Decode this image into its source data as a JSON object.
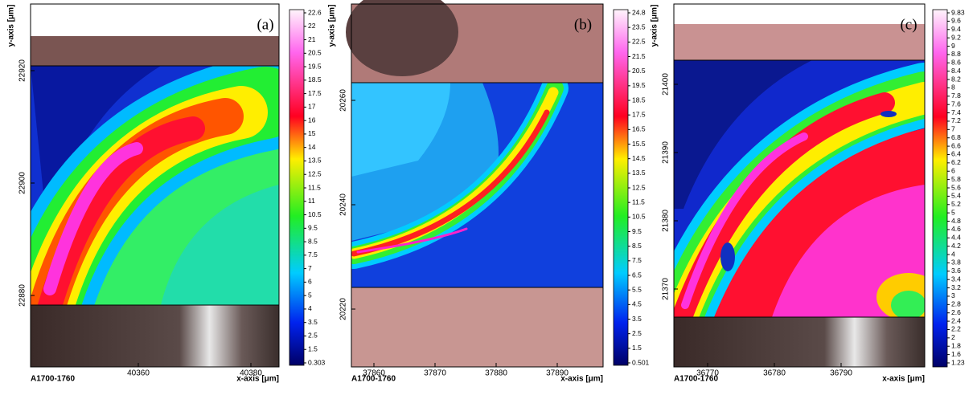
{
  "panels": [
    {
      "label": "(a)",
      "y_axis": "y-axis [μm]",
      "x_axis": "x-axis [μm]",
      "sample": "A1700-1760",
      "yticks": [
        22920,
        22900,
        22880
      ],
      "xticks": [
        40360,
        40380
      ],
      "colorbar": [
        22.6,
        22,
        21,
        20.5,
        19.5,
        18.5,
        17.5,
        17,
        16,
        15,
        14,
        13.5,
        12.5,
        11.5,
        11,
        10.5,
        9.5,
        8.5,
        7.5,
        7,
        6,
        5,
        4,
        3.5,
        2.5,
        1.5,
        0.303
      ]
    },
    {
      "label": "(b)",
      "y_axis": "y-axis [μm]",
      "x_axis": "x-axis [μm]",
      "sample": "A1700-1760",
      "yticks": [
        20260,
        20240,
        20220
      ],
      "xticks": [
        37860,
        37870,
        37880,
        37890
      ],
      "colorbar": [
        24.8,
        23.5,
        22.5,
        21.5,
        20.5,
        19.5,
        18.5,
        17.5,
        16.5,
        15.5,
        14.5,
        13.5,
        12.5,
        11.5,
        10.5,
        9.5,
        8.5,
        7.5,
        6.5,
        5.5,
        4.5,
        3.5,
        2.5,
        1.5,
        0.501
      ]
    },
    {
      "label": "(c)",
      "y_axis": "y-axis [μm]",
      "x_axis": "x-axis [μm]",
      "sample": "A1700-1760",
      "yticks": [
        21400,
        21390,
        21380,
        21370
      ],
      "xticks": [
        36770,
        36780,
        36790
      ],
      "colorbar": [
        9.83,
        9.6,
        9.4,
        9.2,
        9,
        8.8,
        8.6,
        8.4,
        8.2,
        8,
        7.8,
        7.6,
        7.4,
        7.2,
        7,
        6.8,
        6.6,
        6.4,
        6.2,
        6,
        5.8,
        5.6,
        5.4,
        5.2,
        5,
        4.8,
        4.6,
        4.4,
        4.2,
        4,
        3.8,
        3.6,
        3.4,
        3.2,
        3,
        2.8,
        2.6,
        2.4,
        2.2,
        2,
        1.8,
        1.6,
        1.23
      ]
    }
  ]
}
